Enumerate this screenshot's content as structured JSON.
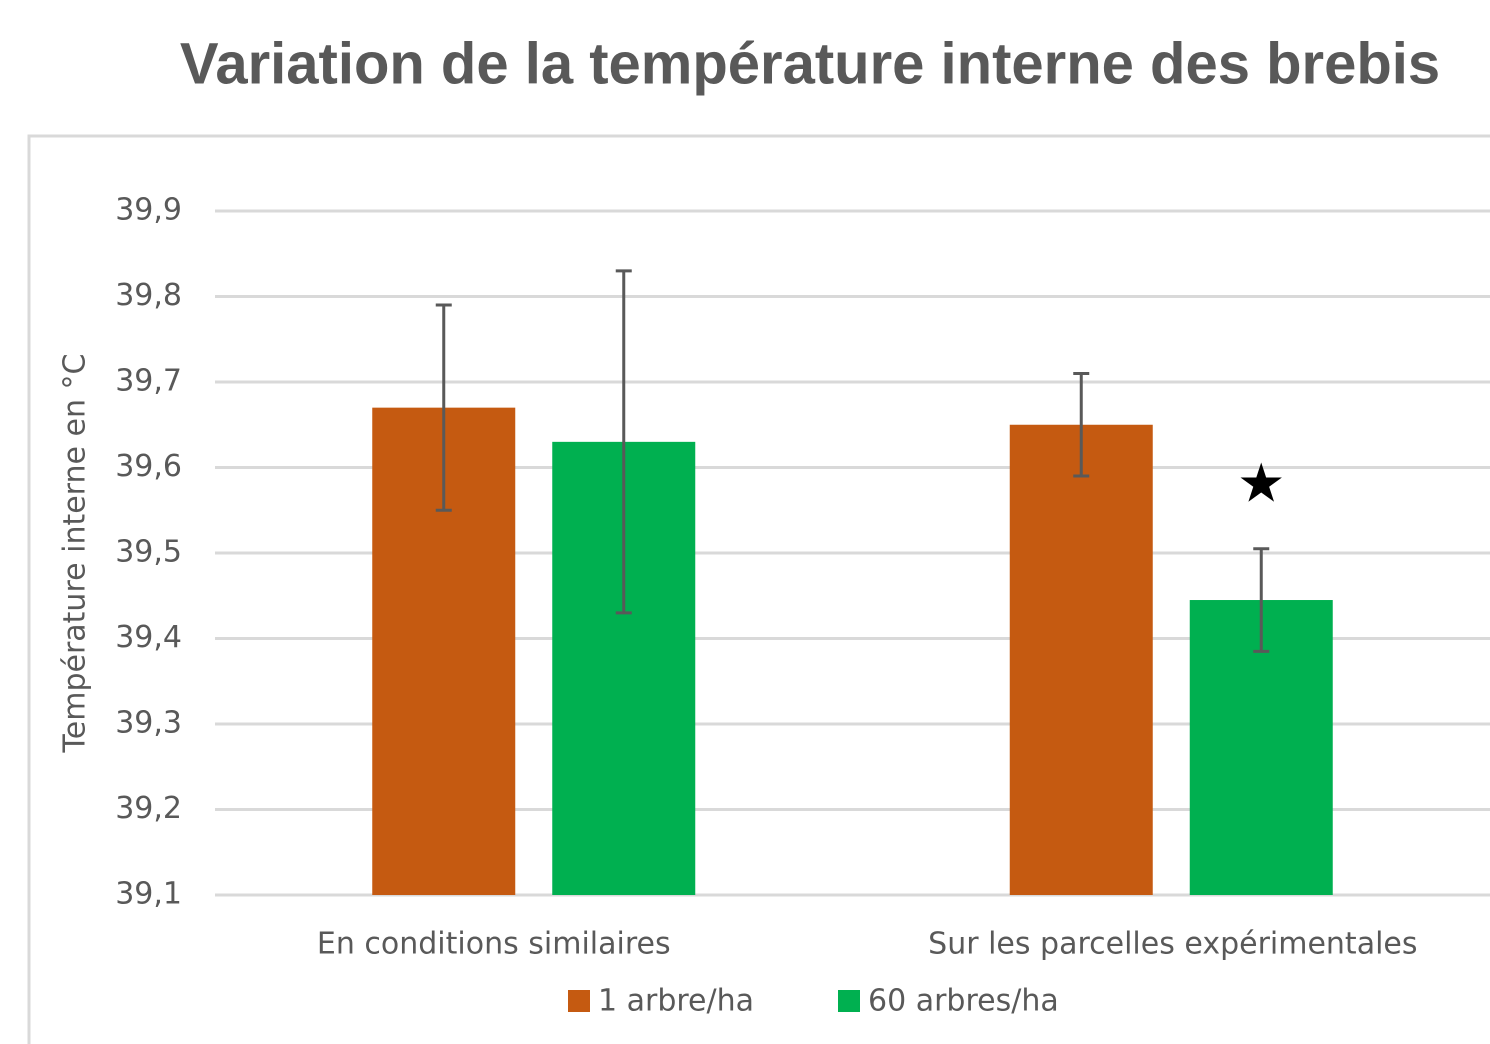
{
  "chart_data": {
    "type": "bar",
    "title": "Variation de la température interne des brebis",
    "ylabel": "Température interne en °C",
    "categories": [
      "En conditions similaires",
      "Sur les parcelles expérimentales"
    ],
    "series": [
      {
        "name": "1 arbre/ha",
        "color": "#c55a11",
        "values": [
          39.67,
          39.65
        ],
        "errors": [
          0.12,
          0.06
        ]
      },
      {
        "name": "60 arbres/ha",
        "color": "#00b050",
        "values": [
          39.63,
          39.445
        ],
        "errors": [
          0.2,
          0.06
        ]
      }
    ],
    "annotation": "★",
    "ylim": [
      39.1,
      39.9
    ],
    "yticks": [
      {
        "value": 39.1,
        "label": "39,1"
      },
      {
        "value": 39.2,
        "label": "39,2"
      },
      {
        "value": 39.3,
        "label": "39,3"
      },
      {
        "value": 39.4,
        "label": "39,4"
      },
      {
        "value": 39.5,
        "label": "39,5"
      },
      {
        "value": 39.6,
        "label": "39,6"
      },
      {
        "value": 39.7,
        "label": "39,7"
      },
      {
        "value": 39.8,
        "label": "39,8"
      },
      {
        "value": 39.9,
        "label": "39,9"
      }
    ],
    "grid": true,
    "legend": "bottom"
  }
}
